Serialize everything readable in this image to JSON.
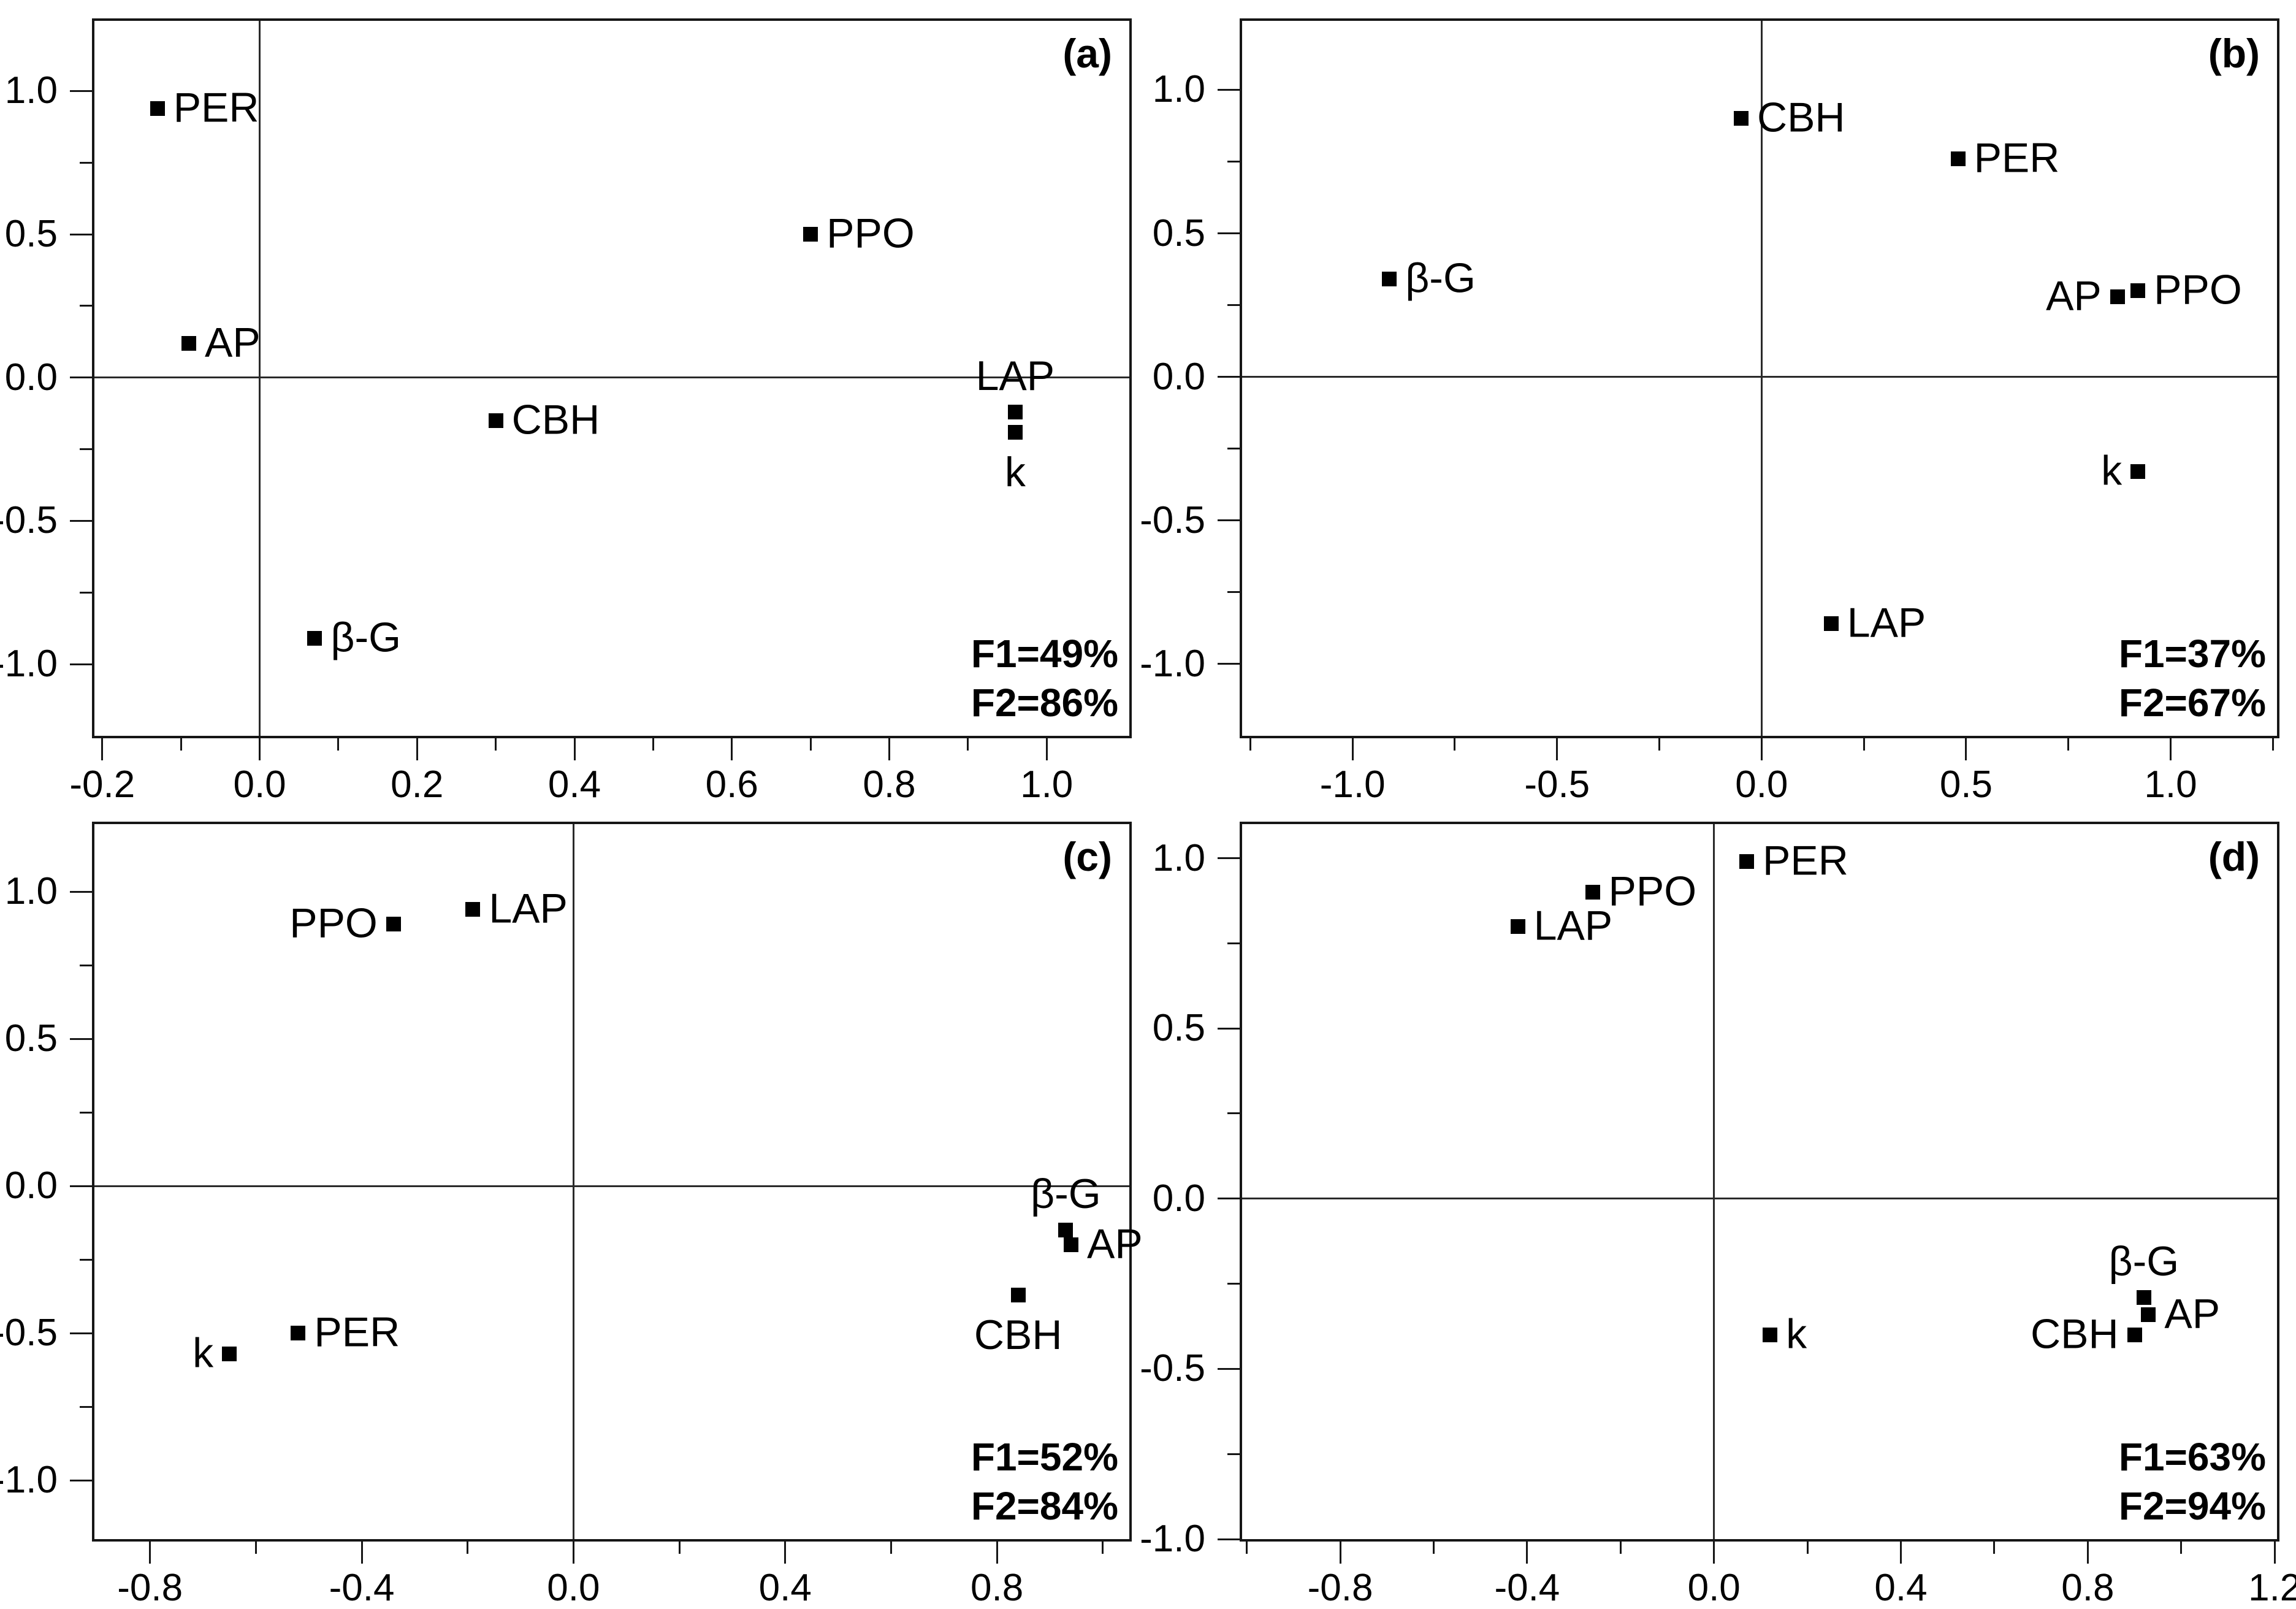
{
  "figure": {
    "background": "#ffffff",
    "text_color": "#000000",
    "marker_color": "#000000",
    "axis_color": "#161616",
    "marker_shape": "filled-square"
  },
  "chart_data": [
    {
      "type": "scatter",
      "panel_id": "a",
      "corner_label": "(a)",
      "f1_label": "F1=49%",
      "f2_label": "F2=86%",
      "xlim": [
        -0.21,
        1.105
      ],
      "ylim": [
        -1.25,
        1.245
      ],
      "xticks": [
        -0.2,
        0.0,
        0.2,
        0.4,
        0.6,
        0.8,
        1.0
      ],
      "xminor_step": 0.1,
      "yticks": [
        -1.0,
        -0.5,
        0.0,
        0.5,
        1.0
      ],
      "yminor_step": 0.25,
      "grid": false,
      "zero_lines": true,
      "points": [
        {
          "label": "PER",
          "x": -0.13,
          "y": 0.94,
          "label_pos": "right"
        },
        {
          "label": "AP",
          "x": -0.09,
          "y": 0.12,
          "label_pos": "right"
        },
        {
          "label": "PPO",
          "x": 0.7,
          "y": 0.5,
          "label_pos": "right"
        },
        {
          "label": "CBH",
          "x": 0.3,
          "y": -0.15,
          "label_pos": "right"
        },
        {
          "label": "LAP",
          "x": 0.96,
          "y": -0.12,
          "label_pos": "above"
        },
        {
          "label": "k",
          "x": 0.96,
          "y": -0.19,
          "label_pos": "below"
        },
        {
          "label": "β-G",
          "x": 0.07,
          "y": -0.91,
          "label_pos": "right"
        }
      ]
    },
    {
      "type": "scatter",
      "panel_id": "b",
      "corner_label": "(b)",
      "f1_label": "F1=37%",
      "f2_label": "F2=67%",
      "xlim": [
        -1.27,
        1.26
      ],
      "ylim": [
        -1.25,
        1.24
      ],
      "xticks": [
        -1.0,
        -0.5,
        0.0,
        0.5,
        1.0
      ],
      "xminor_step": 0.25,
      "yticks": [
        -1.0,
        -0.5,
        0.0,
        0.5,
        1.0
      ],
      "yminor_step": 0.25,
      "grid": false,
      "zero_lines": true,
      "points": [
        {
          "label": "CBH",
          "x": -0.05,
          "y": 0.9,
          "label_pos": "right"
        },
        {
          "label": "PER",
          "x": 0.48,
          "y": 0.76,
          "label_pos": "right"
        },
        {
          "label": "β-G",
          "x": -0.91,
          "y": 0.34,
          "label_pos": "right"
        },
        {
          "label": "AP",
          "x": 0.87,
          "y": 0.28,
          "label_pos": "left"
        },
        {
          "label": "PPO",
          "x": 0.92,
          "y": 0.3,
          "label_pos": "right"
        },
        {
          "label": "k",
          "x": 0.92,
          "y": -0.33,
          "label_pos": "left"
        },
        {
          "label": "LAP",
          "x": 0.17,
          "y": -0.86,
          "label_pos": "right"
        }
      ]
    },
    {
      "type": "scatter",
      "panel_id": "c",
      "corner_label": "(c)",
      "f1_label": "F1=52%",
      "f2_label": "F2=84%",
      "xlim": [
        -0.905,
        1.05
      ],
      "ylim": [
        -1.2,
        1.23
      ],
      "xticks": [
        -0.8,
        -0.4,
        0.0,
        0.4,
        0.8
      ],
      "xminor_step": 0.2,
      "yticks": [
        -1.0,
        -0.5,
        0.0,
        0.5,
        1.0
      ],
      "yminor_step": 0.25,
      "grid": false,
      "zero_lines": true,
      "points": [
        {
          "label": "PPO",
          "x": -0.34,
          "y": 0.89,
          "label_pos": "left"
        },
        {
          "label": "LAP",
          "x": -0.19,
          "y": 0.94,
          "label_pos": "right"
        },
        {
          "label": "PER",
          "x": -0.52,
          "y": -0.5,
          "label_pos": "right"
        },
        {
          "label": "k",
          "x": -0.65,
          "y": -0.57,
          "label_pos": "left"
        },
        {
          "label": "β-G",
          "x": 0.93,
          "y": -0.15,
          "label_pos": "above"
        },
        {
          "label": "AP",
          "x": 0.94,
          "y": -0.2,
          "label_pos": "right"
        },
        {
          "label": "CBH",
          "x": 0.84,
          "y": -0.37,
          "label_pos": "below"
        }
      ]
    },
    {
      "type": "scatter",
      "panel_id": "d",
      "corner_label": "(d)",
      "f1_label": "F1=63%",
      "f2_label": "F2=94%",
      "xlim": [
        -1.01,
        1.205
      ],
      "ylim": [
        -1.0,
        1.1
      ],
      "xticks": [
        -0.8,
        -0.4,
        0.0,
        0.4,
        0.8,
        1.2
      ],
      "xminor_step": 0.2,
      "yticks": [
        -1.0,
        -0.5,
        0.0,
        0.5,
        1.0
      ],
      "yminor_step": 0.25,
      "grid": false,
      "zero_lines": true,
      "points": [
        {
          "label": "PER",
          "x": 0.07,
          "y": 0.99,
          "label_pos": "right"
        },
        {
          "label": "PPO",
          "x": -0.26,
          "y": 0.9,
          "label_pos": "right"
        },
        {
          "label": "LAP",
          "x": -0.42,
          "y": 0.8,
          "label_pos": "right"
        },
        {
          "label": "k",
          "x": 0.12,
          "y": -0.4,
          "label_pos": "right"
        },
        {
          "label": "β-G",
          "x": 0.92,
          "y": -0.29,
          "label_pos": "above"
        },
        {
          "label": "AP",
          "x": 0.93,
          "y": -0.34,
          "label_pos": "right"
        },
        {
          "label": "CBH",
          "x": 0.9,
          "y": -0.4,
          "label_pos": "left"
        }
      ]
    }
  ]
}
